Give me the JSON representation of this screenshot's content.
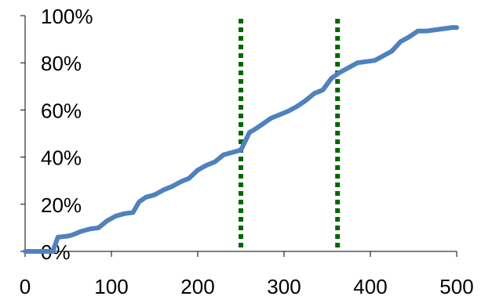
{
  "chart_data": {
    "type": "line",
    "title": "",
    "xlabel": "",
    "ylabel": "",
    "xlim": [
      0,
      500
    ],
    "ylim": [
      0,
      100
    ],
    "x_ticks": [
      0,
      100,
      200,
      300,
      400,
      500
    ],
    "x_tick_labels": [
      "0",
      "100",
      "200",
      "300",
      "400",
      "500"
    ],
    "y_ticks": [
      0,
      20,
      40,
      60,
      80,
      100
    ],
    "y_tick_labels": [
      "0%",
      "20%",
      "40%",
      "60%",
      "80%",
      "100%"
    ],
    "grid": false,
    "legend": "none",
    "series": [
      {
        "color": "#4f81bd",
        "x": [
          0,
          25,
          32,
          38,
          50,
          55,
          65,
          75,
          85,
          95,
          105,
          115,
          125,
          132,
          140,
          150,
          160,
          170,
          180,
          190,
          200,
          210,
          220,
          230,
          240,
          250,
          260,
          265,
          275,
          285,
          295,
          305,
          315,
          325,
          335,
          345,
          355,
          365,
          375,
          385,
          395,
          405,
          415,
          425,
          435,
          445,
          455,
          465,
          475,
          485,
          495,
          500
        ],
        "values": [
          0,
          0,
          0,
          6,
          6.5,
          7,
          8.5,
          9.5,
          10,
          13,
          15,
          16,
          16.5,
          21,
          23,
          24,
          26,
          27.5,
          29.5,
          31,
          34.5,
          36.5,
          38,
          41,
          42,
          43,
          50.5,
          51.5,
          54,
          56.5,
          58,
          59.5,
          61.5,
          64,
          67,
          68.5,
          73.5,
          76,
          78,
          80,
          80.5,
          81,
          83,
          85,
          89,
          91,
          93.5,
          93.5,
          94,
          94.5,
          95,
          95
        ]
      }
    ],
    "vlines": [
      {
        "x": 250,
        "color": "#006600",
        "style": "dotted"
      },
      {
        "x": 362,
        "color": "#006600",
        "style": "dotted"
      }
    ]
  }
}
